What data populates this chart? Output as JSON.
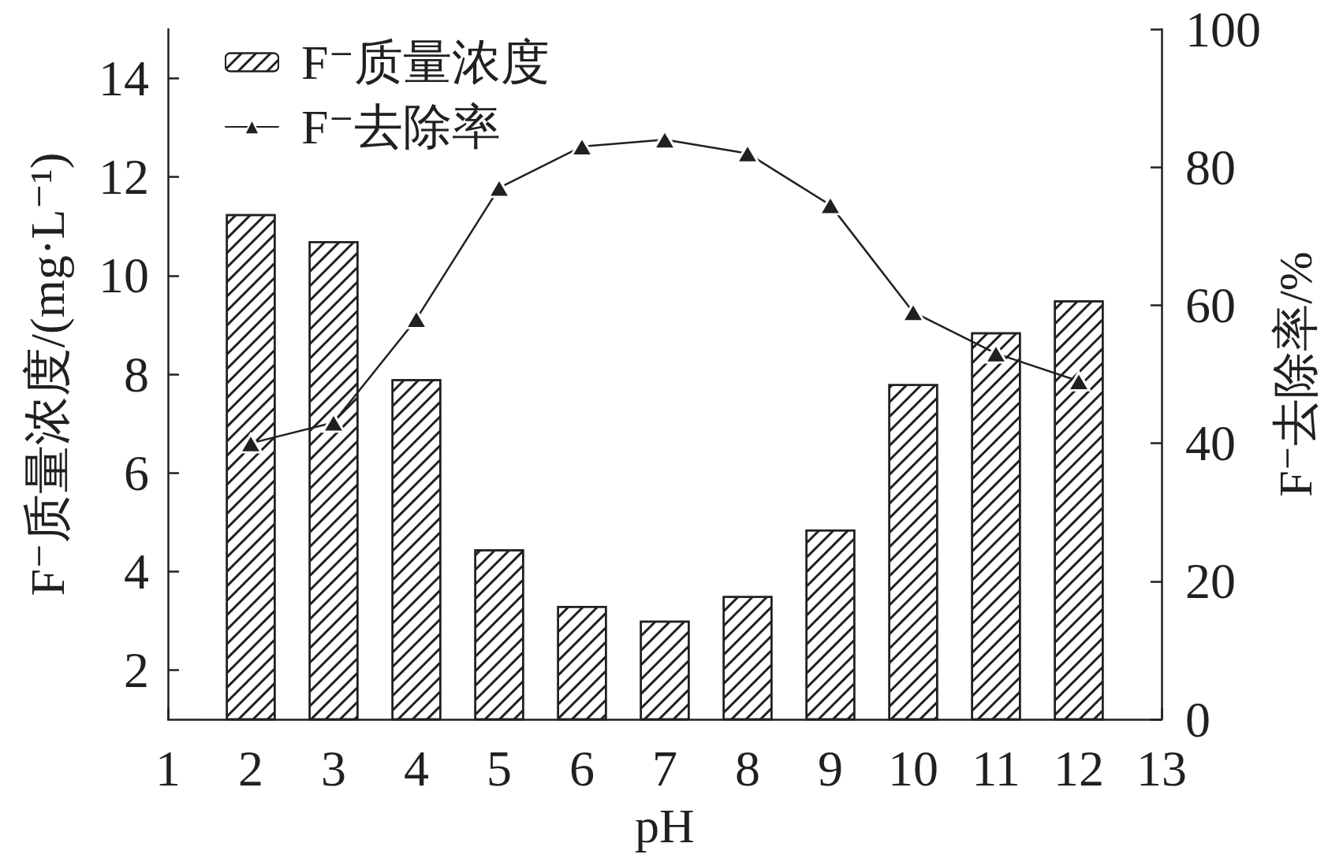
{
  "chart_data": {
    "type": "bar",
    "xlabel": "pH",
    "ylabel": "F⁻质量浓度/(mg·L⁻¹)",
    "y2label": "F⁻去除率/%",
    "x": [
      2,
      3,
      4,
      5,
      6,
      7,
      8,
      9,
      10,
      11,
      12
    ],
    "series": [
      {
        "name": "F⁻质量浓度",
        "color": "#231f20",
        "values": [
          11.25,
          10.7,
          7.9,
          4.45,
          3.3,
          3.0,
          3.5,
          4.85,
          7.8,
          8.85,
          9.5
        ]
      },
      {
        "name": "F⁻去除率",
        "type": "line",
        "axis": "y2",
        "color": "#231f20",
        "marker": "triangle",
        "values": [
          40,
          43,
          58,
          77,
          83,
          84,
          82,
          74.5,
          59,
          53,
          49
        ]
      }
    ],
    "xlim": [
      1,
      13
    ],
    "xticks": [
      1,
      2,
      3,
      4,
      5,
      6,
      7,
      8,
      9,
      10,
      11,
      12,
      13
    ],
    "ylim": [
      1,
      15
    ],
    "yticks": [
      2,
      4,
      6,
      8,
      10,
      12,
      14
    ],
    "y2lim": [
      0,
      100
    ],
    "y2ticks": [
      0,
      20,
      40,
      60,
      80,
      100
    ],
    "grid": false,
    "legend": "top left"
  }
}
